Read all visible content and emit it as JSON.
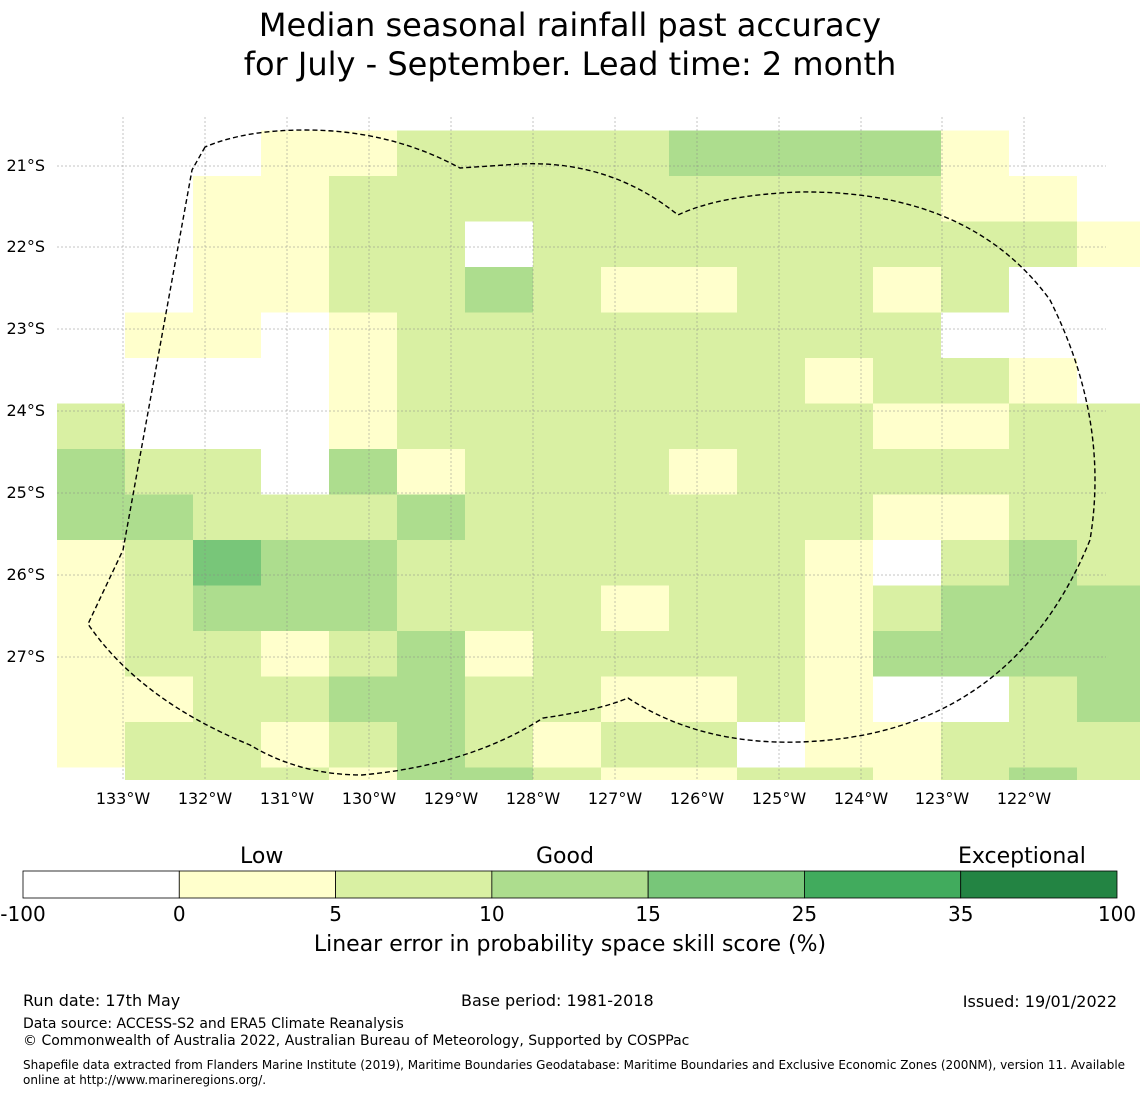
{
  "title": {
    "line1": "Median seasonal rainfall past accuracy",
    "line2": "for July - September. Lead time: 2 month"
  },
  "map": {
    "lat_labels": [
      "21°S",
      "22°S",
      "23°S",
      "24°S",
      "25°S",
      "26°S",
      "27°S"
    ],
    "lon_labels": [
      "133°W",
      "132°W",
      "131°W",
      "130°W",
      "129°W",
      "128°W",
      "127°W",
      "126°W",
      "125°W",
      "124°W",
      "123°W",
      "122°W"
    ],
    "boundary_style": "dashed black line",
    "grid": true
  },
  "legend": {
    "categories": [
      "Low",
      "Good",
      "Exceptional"
    ],
    "ticks": [
      "-100",
      "0",
      "5",
      "10",
      "15",
      "25",
      "35",
      "100"
    ],
    "colors": [
      "#ffffff",
      "#ffffcc",
      "#d9f0a3",
      "#addd8e",
      "#78c679",
      "#41ab5d",
      "#238443"
    ],
    "title": "Linear error in probability space skill score (%)"
  },
  "footer": {
    "run_date": "Run date: 17th May",
    "base_period": "Base period: 1981-2018",
    "issued": "Issued: 19/01/2022",
    "data_source": "Data source: ACCESS-S2 and ERA5 Climate Reanalysis",
    "copyright": "© Commonwealth of Australia 2022, Australian Bureau of Meteorology, Supported by COSPPac",
    "shapefile_line1": "Shapefile data extracted from Flanders Marine Institute (2019), Maritime Boundaries Geodatabase: Maritime Boundaries and Exclusive Economic Zones (200NM), version 11. Available",
    "shapefile_line2": "online at http://www.marineregions.org/."
  }
}
